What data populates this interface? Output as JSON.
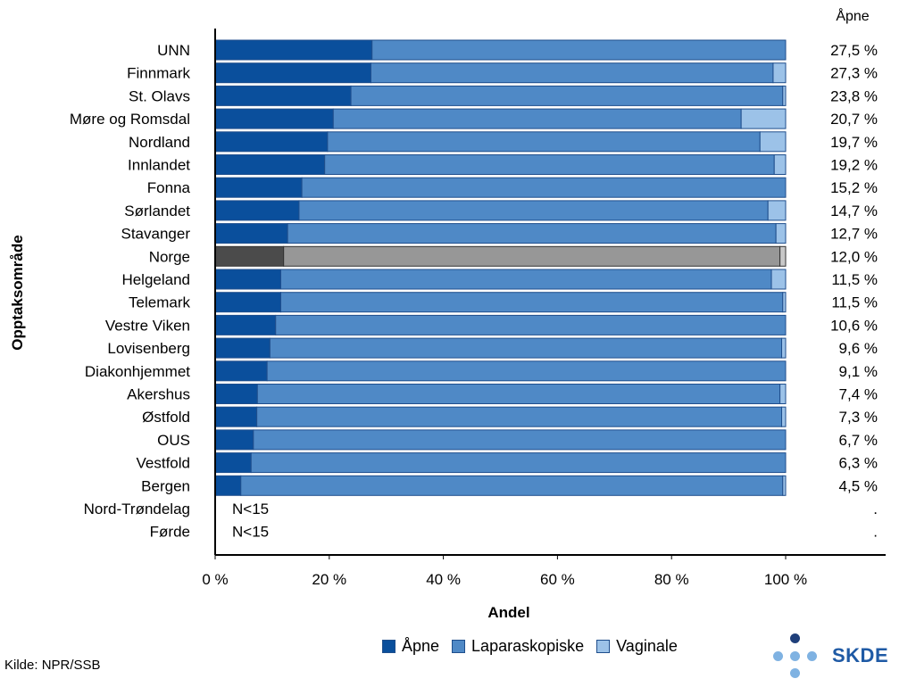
{
  "source": "Kilde: NPR/SSB",
  "logo_text": "SKDE",
  "colors": {
    "apne": "#0a4f9c",
    "laparoskopiske": "#4f89c6",
    "vaginale": "#9cc2e8",
    "norge_apne": "#4b4b4b",
    "norge_lap": "#979797",
    "norge_vag": "#c8c8c8"
  },
  "chart_data": {
    "type": "bar",
    "orientation": "horizontal",
    "stacked": true,
    "ylabel": "Opptaksområde",
    "xlabel": "Andel",
    "right_header": "Åpne",
    "xlim": [
      0,
      100
    ],
    "xticks": [
      "0 %",
      "20 %",
      "40 %",
      "60 %",
      "80 %",
      "100 %"
    ],
    "categories": [
      "UNN",
      "Finnmark",
      "St. Olavs",
      "Møre og Romsdal",
      "Nordland",
      "Innlandet",
      "Fonna",
      "Sørlandet",
      "Stavanger",
      "Norge",
      "Helgeland",
      "Telemark",
      "Vestre Viken",
      "Lovisenberg",
      "Diakonhjemmet",
      "Akershus",
      "Østfold",
      "OUS",
      "Vestfold",
      "Bergen",
      "Nord-Trøndelag",
      "Førde"
    ],
    "highlight": "Norge",
    "series": [
      {
        "name": "Åpne",
        "values": [
          27.5,
          27.3,
          23.8,
          20.7,
          19.7,
          19.2,
          15.2,
          14.7,
          12.7,
          12.0,
          11.5,
          11.5,
          10.6,
          9.6,
          9.1,
          7.4,
          7.3,
          6.7,
          6.3,
          4.5,
          null,
          null
        ]
      },
      {
        "name": "Laparaskopiske",
        "values": [
          72.5,
          70.5,
          75.7,
          71.5,
          75.8,
          78.8,
          84.8,
          82.2,
          85.6,
          87.0,
          86.0,
          88.0,
          89.4,
          89.7,
          90.9,
          91.6,
          92.0,
          93.3,
          93.7,
          95.0,
          null,
          null
        ]
      },
      {
        "name": "Vaginale",
        "values": [
          0.0,
          2.2,
          0.5,
          7.8,
          4.5,
          2.0,
          0.0,
          3.1,
          1.7,
          1.0,
          2.5,
          0.5,
          0.0,
          0.7,
          0.0,
          1.0,
          0.7,
          0.0,
          0.0,
          0.5,
          null,
          null
        ]
      }
    ],
    "right_labels": [
      "27,5 %",
      "27,3 %",
      "23,8 %",
      "20,7 %",
      "19,7 %",
      "19,2 %",
      "15,2 %",
      "14,7 %",
      "12,7 %",
      "12,0 %",
      "11,5 %",
      "11,5 %",
      "10,6 %",
      "9,6 %",
      "9,1 %",
      "7,4 %",
      "7,3 %",
      "6,7 %",
      "6,3 %",
      "4,5 %",
      ".",
      "."
    ],
    "bar_annotations": [
      "",
      "",
      "",
      "",
      "",
      "",
      "",
      "",
      "",
      "",
      "",
      "",
      "",
      "",
      "",
      "",
      "",
      "",
      "",
      "",
      "N<15",
      "N<15"
    ],
    "legend": [
      "Åpne",
      "Laparaskopiske",
      "Vaginale"
    ],
    "legend_placement": "bottom"
  }
}
